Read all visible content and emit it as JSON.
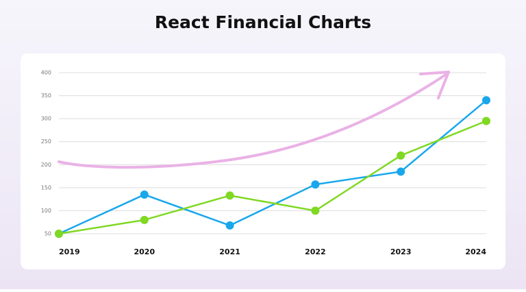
{
  "chart_data": {
    "type": "line",
    "title": "React Financial Charts",
    "categories": [
      "2019",
      "2020",
      "2021",
      "2022",
      "2023",
      "2024"
    ],
    "series": [
      {
        "color": "#19a7ec",
        "values": [
          50,
          135,
          68,
          157,
          185,
          340
        ]
      },
      {
        "color": "#7fd822",
        "values": [
          50,
          80,
          133,
          100,
          220,
          295
        ]
      }
    ],
    "ylim": [
      50,
      400
    ],
    "yticks": [
      50,
      100,
      150,
      200,
      250,
      300,
      350,
      400
    ],
    "grid": true
  }
}
